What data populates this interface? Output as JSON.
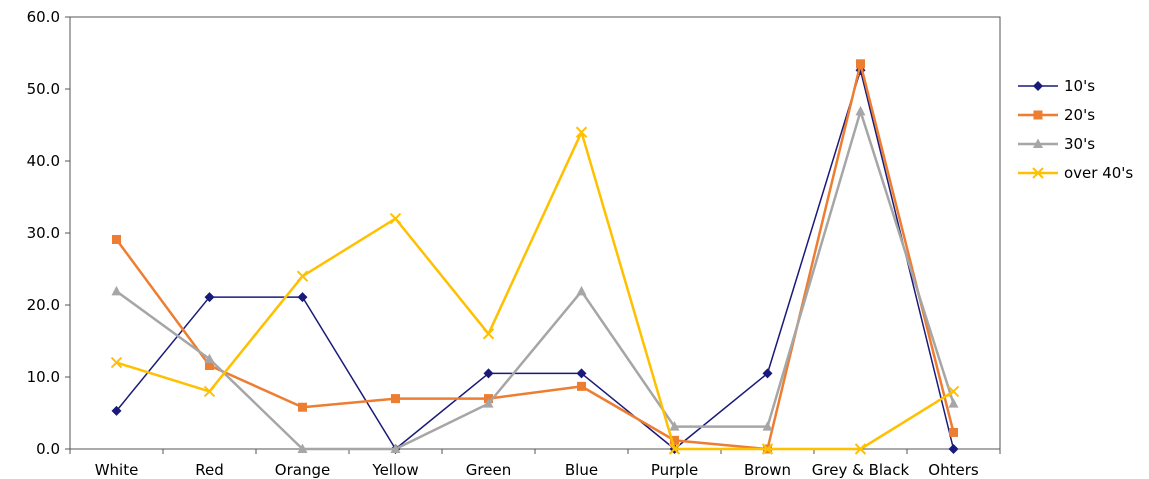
{
  "chart_data": {
    "type": "line",
    "categories": [
      "White",
      "Red",
      "Orange",
      "Yellow",
      "Green",
      "Blue",
      "Purple",
      "Brown",
      "Grey & Black",
      "Ohters"
    ],
    "series": [
      {
        "name": "10's",
        "color": "#1a1a7a",
        "marker": "diamond",
        "values": [
          5.3,
          21.1,
          21.1,
          0.0,
          10.5,
          10.5,
          0.0,
          10.5,
          52.6,
          0.0
        ]
      },
      {
        "name": "20's",
        "color": "#ed7d31",
        "marker": "square",
        "values": [
          29.1,
          11.6,
          5.8,
          7.0,
          7.0,
          8.7,
          1.2,
          0.0,
          53.5,
          2.3
        ]
      },
      {
        "name": "30's",
        "color": "#a6a6a6",
        "marker": "triangle",
        "values": [
          21.9,
          12.5,
          0.0,
          0.0,
          6.3,
          21.9,
          3.1,
          3.1,
          46.9,
          6.3
        ]
      },
      {
        "name": "over 40's",
        "color": "#ffc000",
        "marker": "x",
        "values": [
          12.0,
          8.0,
          24.0,
          32.0,
          16.0,
          44.0,
          0.0,
          0.0,
          0.0,
          8.0
        ]
      }
    ],
    "ylim": [
      0,
      60
    ],
    "yticks": [
      "0.0",
      "10.0",
      "20.0",
      "30.0",
      "40.0",
      "50.0",
      "60.0"
    ],
    "title": "",
    "xlabel": "",
    "ylabel": "",
    "grid": false,
    "legend_position": "right"
  }
}
